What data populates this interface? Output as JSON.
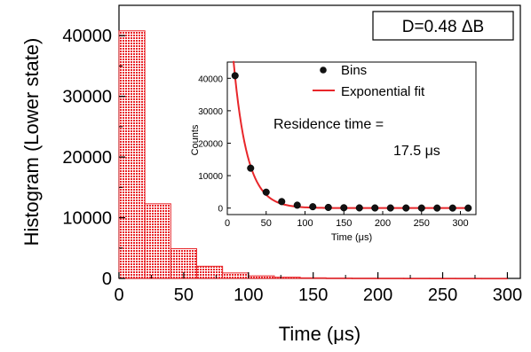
{
  "chart_data": [
    {
      "type": "bar",
      "role": "main-histogram",
      "xlabel": "Time (μs)",
      "ylabel": "Histogram (Lower state)",
      "xlim": [
        0,
        310
      ],
      "ylim": [
        0,
        45000
      ],
      "x_ticks": [
        "0",
        "50",
        "100",
        "150",
        "200",
        "250",
        "300"
      ],
      "y_ticks": [
        "0",
        "10000",
        "20000",
        "30000",
        "40000"
      ],
      "bin_width": 20,
      "bin_starts": [
        0,
        20,
        40,
        60,
        80,
        100,
        120,
        140,
        160,
        180,
        200,
        220,
        240,
        260,
        280
      ],
      "values": [
        40800,
        12300,
        4900,
        2000,
        900,
        420,
        200,
        100,
        60,
        40,
        30,
        20,
        15,
        10,
        5
      ],
      "bar_color": "#e8262a",
      "annotation": "D=0.48 ΔB"
    },
    {
      "type": "scatter",
      "role": "inset",
      "xlabel": "Time (μs)",
      "ylabel": "Counts",
      "xlim": [
        0,
        320
      ],
      "ylim": [
        -2000,
        45000
      ],
      "x_ticks": [
        "0",
        "50",
        "100",
        "150",
        "200",
        "250",
        "300"
      ],
      "y_ticks": [
        "0",
        "10000",
        "20000",
        "30000",
        "40000"
      ],
      "series": [
        {
          "name": "Bins",
          "x": [
            10,
            30,
            50,
            70,
            90,
            110,
            130,
            150,
            170,
            190,
            210,
            230,
            250,
            270,
            290,
            310
          ],
          "y": [
            40800,
            12300,
            4900,
            2000,
            900,
            420,
            200,
            100,
            60,
            40,
            30,
            20,
            15,
            10,
            5,
            3
          ],
          "color": "#000000"
        },
        {
          "name": "Exponential fit",
          "type": "line",
          "amplitude": 71600,
          "tau": 17.5,
          "color": "#e8262a"
        }
      ],
      "annotation_line1": "Residence time =",
      "annotation_line2": "17.5 μs"
    }
  ]
}
